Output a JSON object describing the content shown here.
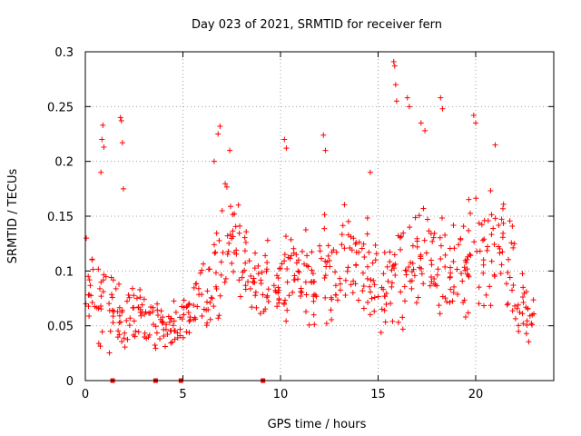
{
  "chart_data": {
    "type": "scatter",
    "title": "Day 023 of 2021, SRMTID for receiver fern",
    "xlabel": "GPS time / hours",
    "ylabel": "SRMTID / TECUs",
    "xlim": [
      0,
      24
    ],
    "ylim": [
      0,
      0.3
    ],
    "x_ticks": [
      0,
      5,
      10,
      15,
      20
    ],
    "x_tick_labels": [
      "0",
      "5",
      "10",
      "15",
      "20"
    ],
    "y_ticks": [
      0,
      0.05,
      0.1,
      0.15,
      0.2,
      0.25,
      0.3
    ],
    "y_tick_labels": [
      "0",
      "0.05",
      "0.1",
      "0.15",
      "0.2",
      "0.25",
      "0.3"
    ],
    "grid": true,
    "marker": "+",
    "series": [
      {
        "name": "SRMTID",
        "color": "#ff0000",
        "points_per_bin": 14,
        "x": [
          0.0,
          0.5,
          1.0,
          1.5,
          2.0,
          2.5,
          3.0,
          3.5,
          4.0,
          4.5,
          5.0,
          5.5,
          6.0,
          6.5,
          7.0,
          7.5,
          8.0,
          8.5,
          9.0,
          9.5,
          10.0,
          10.5,
          11.0,
          11.5,
          12.0,
          12.5,
          13.0,
          13.5,
          14.0,
          14.5,
          15.0,
          15.5,
          16.0,
          16.5,
          17.0,
          17.5,
          18.0,
          18.5,
          19.0,
          19.5,
          20.0,
          20.5,
          21.0,
          21.5,
          22.0,
          22.5
        ],
        "y_center": [
          0.08,
          0.07,
          0.065,
          0.06,
          0.062,
          0.06,
          0.055,
          0.05,
          0.045,
          0.055,
          0.06,
          0.07,
          0.08,
          0.1,
          0.13,
          0.12,
          0.1,
          0.09,
          0.09,
          0.085,
          0.095,
          0.1,
          0.09,
          0.09,
          0.1,
          0.1,
          0.11,
          0.11,
          0.1,
          0.09,
          0.08,
          0.09,
          0.1,
          0.1,
          0.11,
          0.11,
          0.1,
          0.09,
          0.1,
          0.11,
          0.12,
          0.12,
          0.13,
          0.11,
          0.07,
          0.06
        ],
        "y_spread": [
          0.025,
          0.03,
          0.03,
          0.025,
          0.025,
          0.025,
          0.02,
          0.02,
          0.018,
          0.02,
          0.02,
          0.025,
          0.03,
          0.035,
          0.04,
          0.035,
          0.03,
          0.03,
          0.03,
          0.03,
          0.035,
          0.04,
          0.035,
          0.035,
          0.04,
          0.04,
          0.04,
          0.04,
          0.04,
          0.035,
          0.035,
          0.04,
          0.045,
          0.045,
          0.045,
          0.045,
          0.04,
          0.04,
          0.04,
          0.045,
          0.045,
          0.04,
          0.04,
          0.035,
          0.025,
          0.02
        ],
        "outliers": [
          [
            0.05,
            0.13
          ],
          [
            0.8,
            0.19
          ],
          [
            0.85,
            0.22
          ],
          [
            0.9,
            0.233
          ],
          [
            0.95,
            0.213
          ],
          [
            1.8,
            0.24
          ],
          [
            1.85,
            0.237
          ],
          [
            1.9,
            0.217
          ],
          [
            1.95,
            0.175
          ],
          [
            6.6,
            0.2
          ],
          [
            6.8,
            0.225
          ],
          [
            6.9,
            0.232
          ],
          [
            7.4,
            0.21
          ],
          [
            10.2,
            0.22
          ],
          [
            10.3,
            0.212
          ],
          [
            12.2,
            0.224
          ],
          [
            12.3,
            0.21
          ],
          [
            14.6,
            0.19
          ],
          [
            15.8,
            0.291
          ],
          [
            15.85,
            0.287
          ],
          [
            15.9,
            0.27
          ],
          [
            15.95,
            0.255
          ],
          [
            16.5,
            0.258
          ],
          [
            16.6,
            0.25
          ],
          [
            17.2,
            0.235
          ],
          [
            17.4,
            0.228
          ],
          [
            18.2,
            0.258
          ],
          [
            18.3,
            0.248
          ],
          [
            19.9,
            0.242
          ],
          [
            20.0,
            0.235
          ],
          [
            21.0,
            0.215
          ]
        ]
      },
      {
        "name": "zero-level",
        "color": "#ff0000",
        "marker": "square",
        "x": [
          1.4,
          3.6,
          4.9,
          9.1
        ],
        "y": [
          0,
          0,
          0,
          0
        ]
      }
    ]
  }
}
